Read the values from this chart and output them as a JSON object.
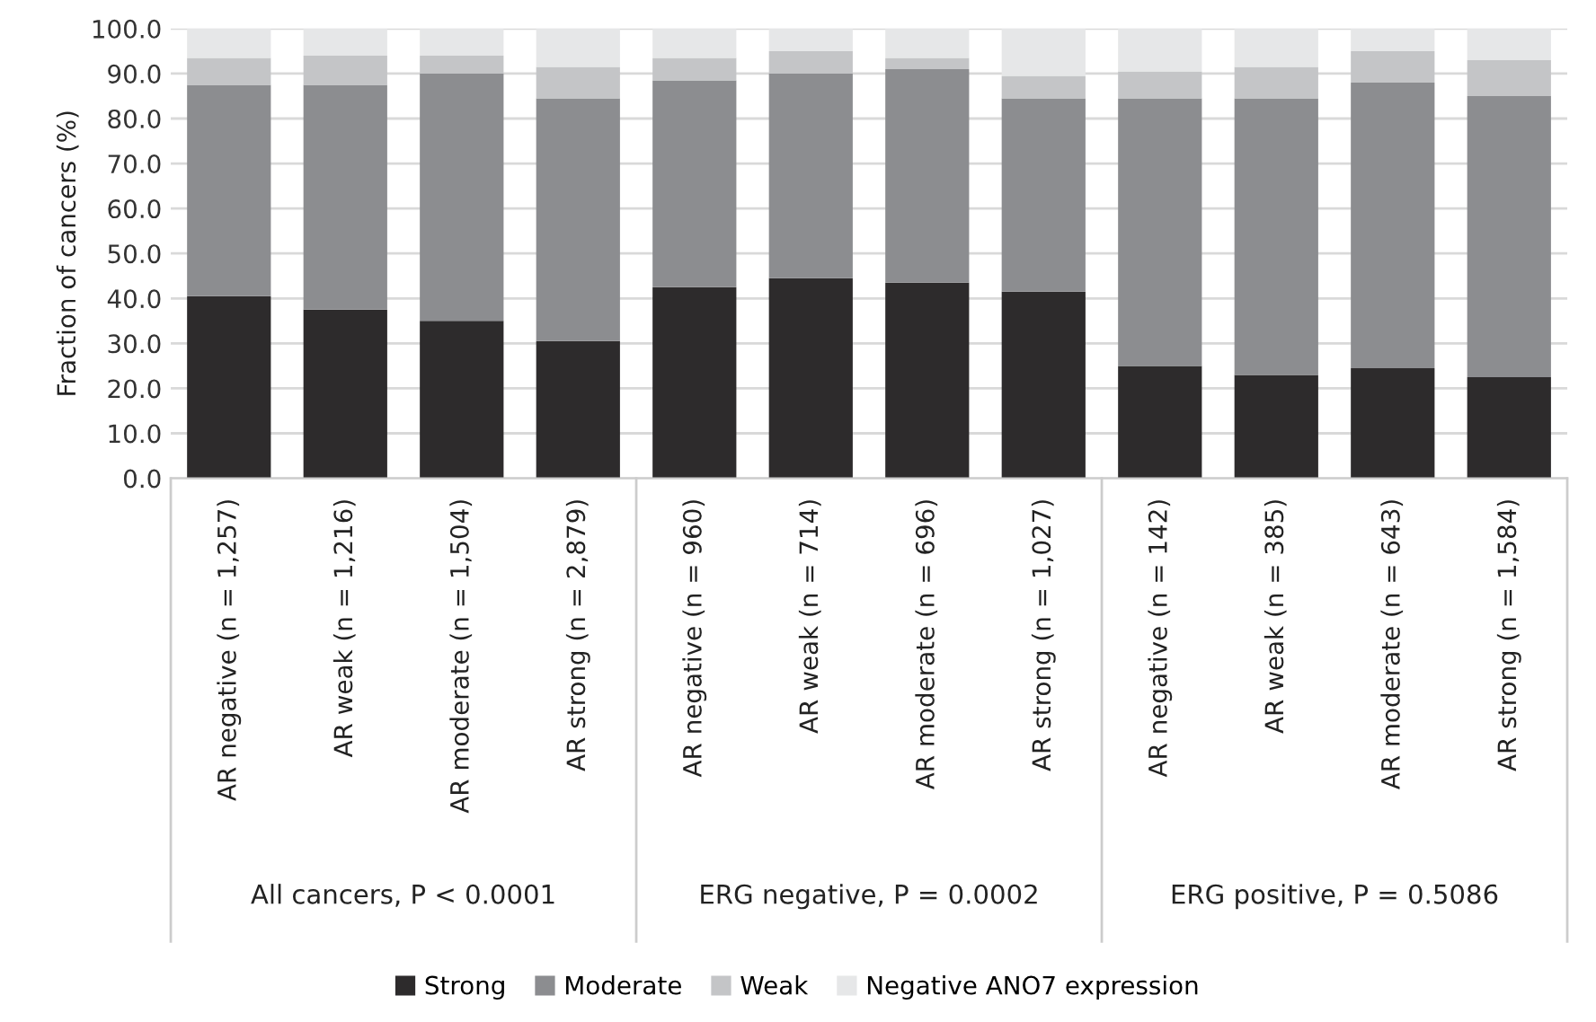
{
  "chart_data": {
    "type": "bar",
    "stacked": true,
    "ylabel": "Fraction of cancers (%)",
    "categories": [
      "AR negative (n = 1,257)",
      "AR weak (n = 1,216)",
      "AR moderate (n = 1,504)",
      "AR strong (n = 2,879)",
      "AR negative (n = 960)",
      "AR weak (n = 714)",
      "AR moderate (n = 696)",
      "AR strong (n = 1,027)",
      "AR negative (n = 142)",
      "AR weak (n = 385)",
      "AR moderate (n = 643)",
      "AR strong (n = 1,584)"
    ],
    "series": [
      {
        "name": "Strong",
        "color": "#2d2b2c",
        "values": [
          40.5,
          37.5,
          35,
          30.5,
          42.5,
          44.5,
          43.5,
          41.5,
          25,
          23,
          24.5,
          22.5
        ]
      },
      {
        "name": "Moderate",
        "color": "#8c8d90",
        "values": [
          47,
          50,
          55,
          54,
          46,
          45.5,
          47.5,
          43,
          59.5,
          61.5,
          63.5,
          62.5
        ]
      },
      {
        "name": "Weak",
        "color": "#c4c5c7",
        "values": [
          6,
          6.5,
          4,
          7,
          5,
          5,
          2.5,
          5,
          6,
          7,
          7,
          8
        ]
      },
      {
        "name": "Negative ANO7 expression",
        "color": "#e6e7e8",
        "values": [
          6.5,
          6,
          6,
          8.5,
          6.5,
          5,
          6.5,
          10.5,
          9.5,
          8.5,
          5,
          7
        ]
      }
    ],
    "annotations": [
      "All cancers, P < 0.0001",
      "ERG negative, P = 0.0002",
      "ERG positive, P = 0.5086"
    ],
    "ylim": [
      0,
      100
    ],
    "yticks": [
      {
        "value": 0,
        "label": "0.0"
      },
      {
        "value": 10,
        "label": "10.0"
      },
      {
        "value": 20,
        "label": "20.0"
      },
      {
        "value": 30,
        "label": "30.0"
      },
      {
        "value": 40,
        "label": "40.0"
      },
      {
        "value": 50,
        "label": "50.0"
      },
      {
        "value": 60,
        "label": "60.0"
      },
      {
        "value": 70,
        "label": "70.0"
      },
      {
        "value": 80,
        "label": "80.0"
      },
      {
        "value": 90,
        "label": "90.0"
      },
      {
        "value": 100,
        "label": "100.0"
      }
    ],
    "grid": "y",
    "legend": "bottom"
  }
}
